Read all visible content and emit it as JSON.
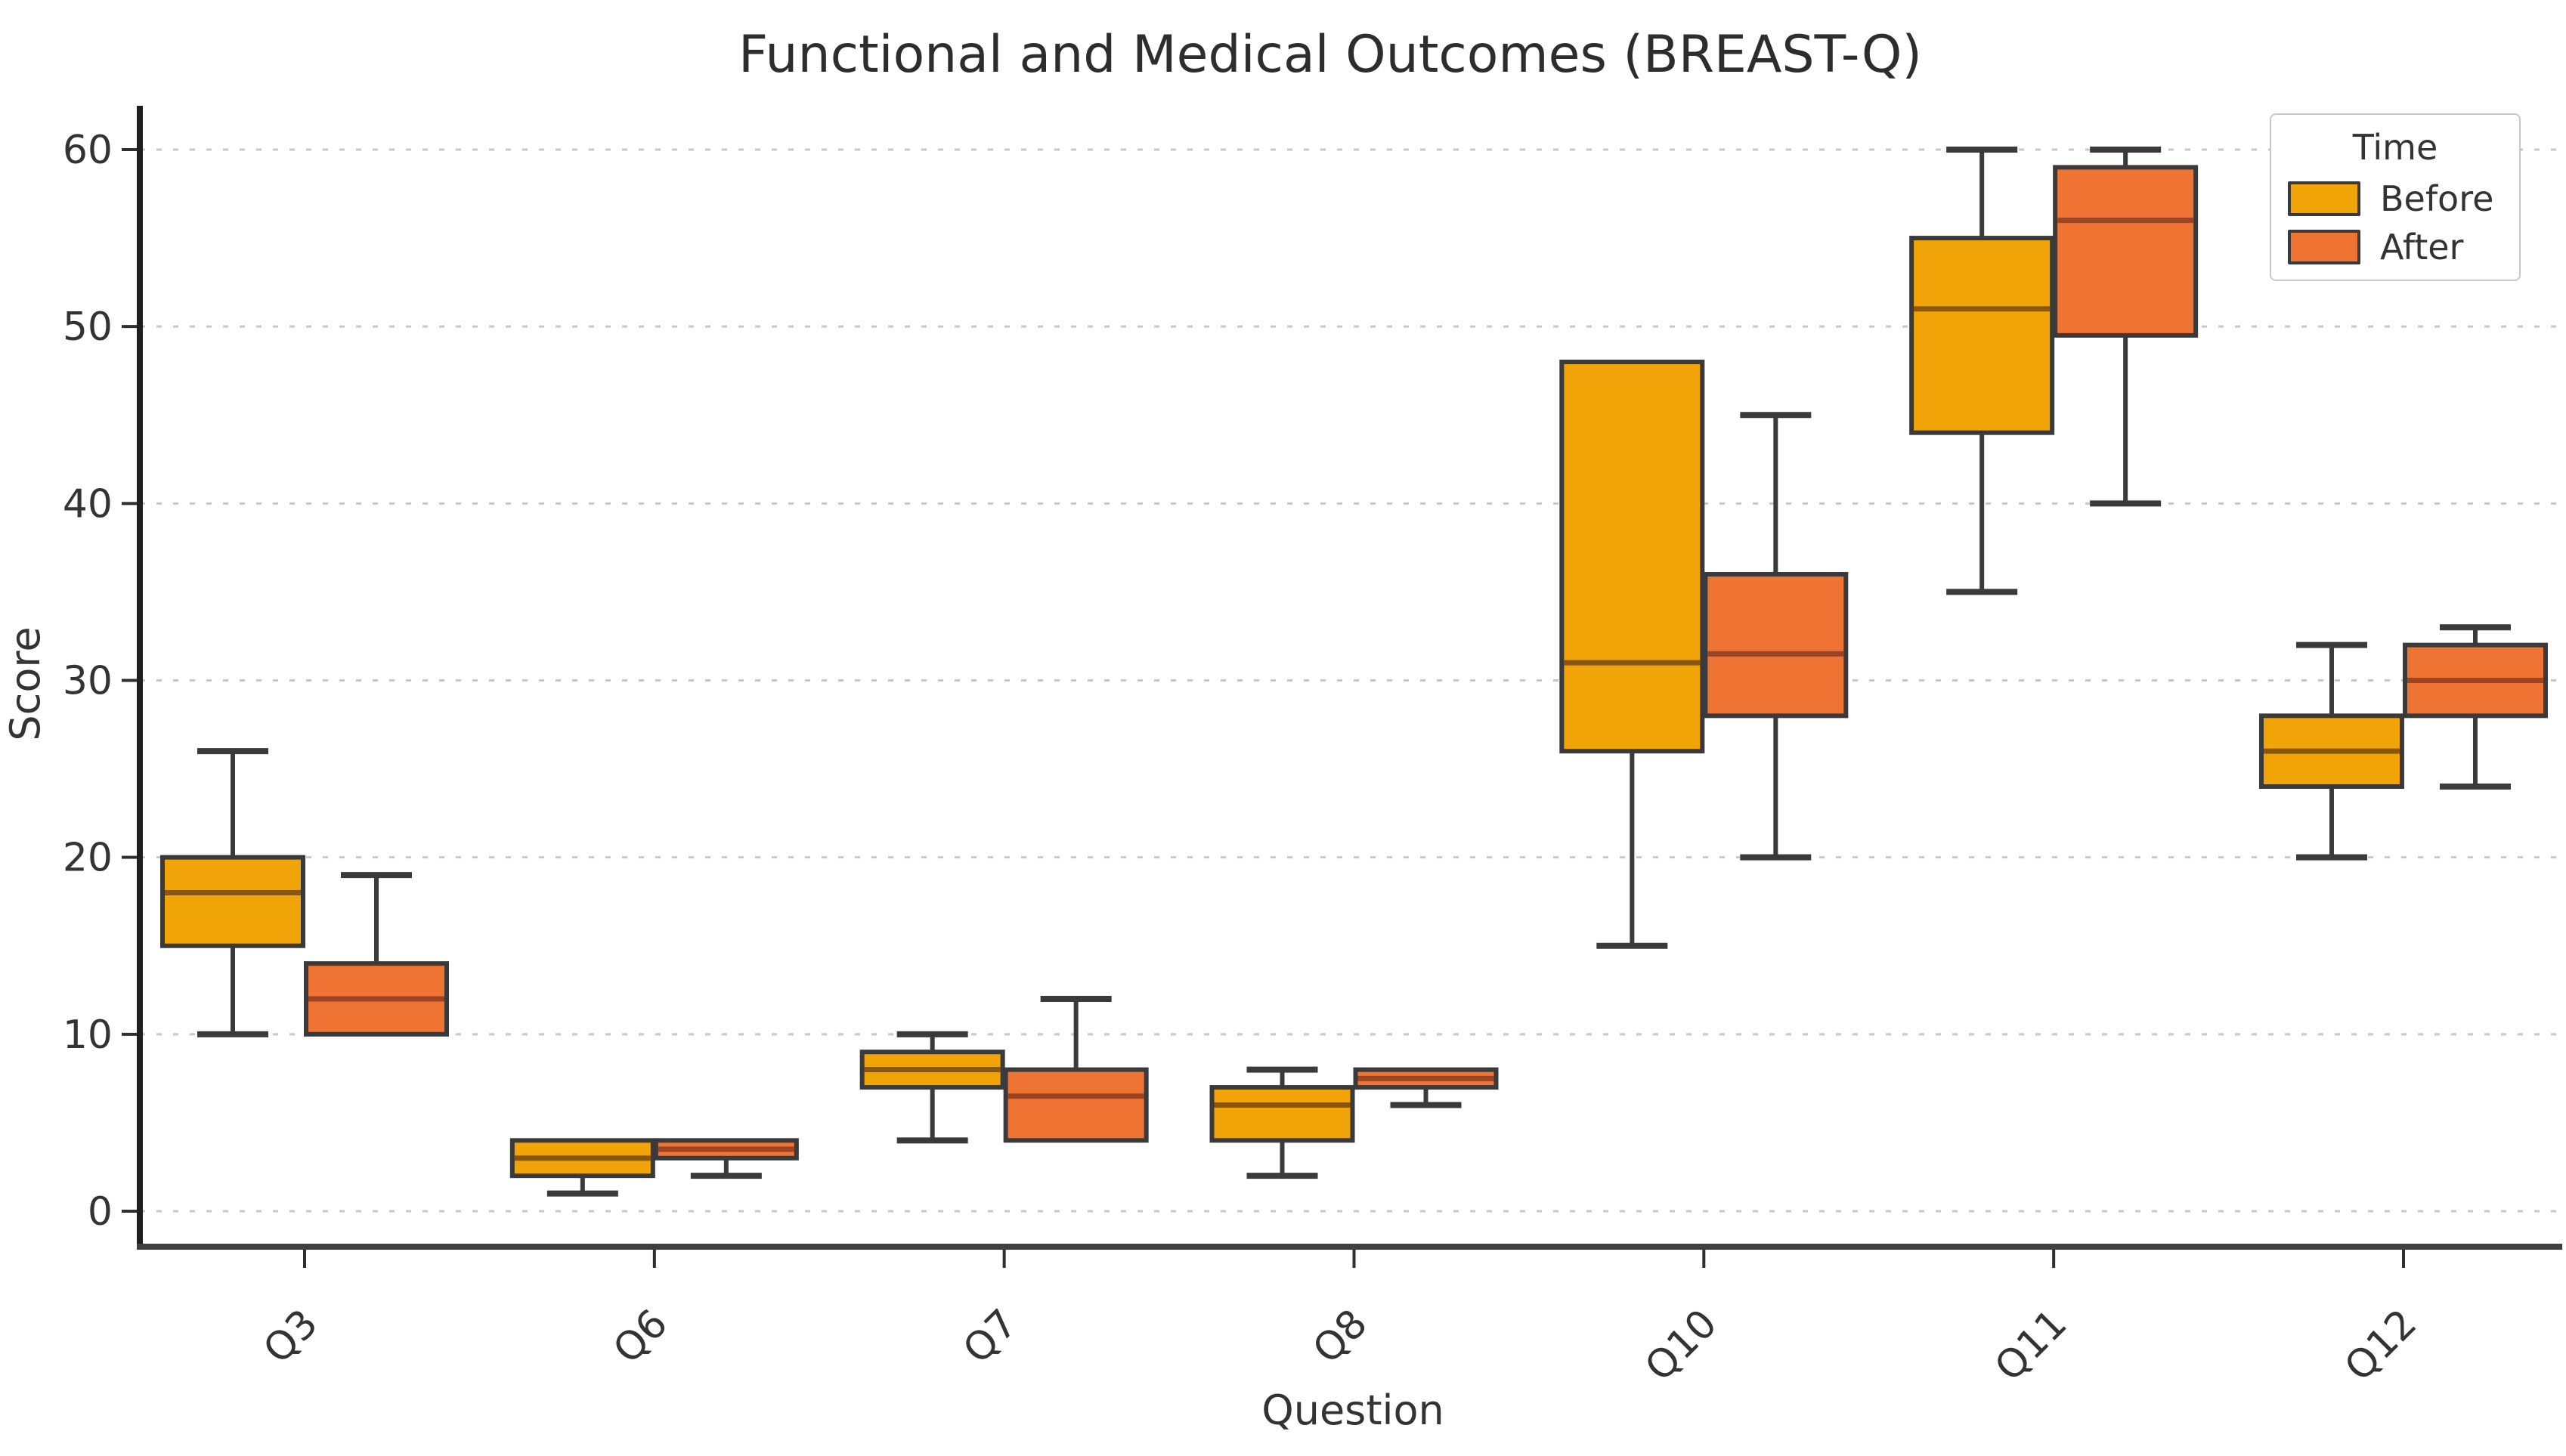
{
  "chart_data": {
    "type": "boxplot",
    "title": "Functional and Medical Outcomes (BREAST-Q)",
    "xlabel": "Question",
    "ylabel": "Score",
    "categories": [
      "Q3",
      "Q6",
      "Q7",
      "Q8",
      "Q10",
      "Q11",
      "Q12"
    ],
    "yticks": [
      0,
      10,
      20,
      30,
      40,
      50,
      60
    ],
    "ylim": [
      -2,
      62
    ],
    "grid": "horizontal-dashed",
    "legend": {
      "title": "Time",
      "position": "upper-right",
      "entries": [
        {
          "label": "Before",
          "color": "#F1A408"
        },
        {
          "label": "After",
          "color": "#EF7433"
        }
      ]
    },
    "style": {
      "box_edge": "#3a3a3a",
      "whisker": "#3a3a3a",
      "grid_color": "#c8c8c8",
      "spine_color": "#2f2f2f",
      "title_color": "#2d2d2d",
      "median_colors": {
        "Before": "#8a560e",
        "After": "#9c4524"
      }
    },
    "series": [
      {
        "name": "Before",
        "color": "#F1A408",
        "boxes": [
          {
            "category": "Q3",
            "min": 10,
            "q1": 15,
            "median": 18,
            "q3": 20,
            "max": 26
          },
          {
            "category": "Q6",
            "min": 1,
            "q1": 2,
            "median": 3,
            "q3": 4,
            "max": 4
          },
          {
            "category": "Q7",
            "min": 4,
            "q1": 7,
            "median": 8,
            "q3": 9,
            "max": 10
          },
          {
            "category": "Q8",
            "min": 2,
            "q1": 4,
            "median": 6,
            "q3": 7,
            "max": 8
          },
          {
            "category": "Q10",
            "min": 15,
            "q1": 26,
            "median": 31,
            "q3": 48,
            "max": 48
          },
          {
            "category": "Q11",
            "min": 35,
            "q1": 44,
            "median": 51,
            "q3": 55,
            "max": 60
          },
          {
            "category": "Q12",
            "min": 20,
            "q1": 24,
            "median": 26,
            "q3": 28,
            "max": 32
          }
        ]
      },
      {
        "name": "After",
        "color": "#EF7433",
        "boxes": [
          {
            "category": "Q3",
            "min": 10,
            "q1": 10,
            "median": 12,
            "q3": 14,
            "max": 19
          },
          {
            "category": "Q6",
            "min": 2,
            "q1": 3,
            "median": 3.5,
            "q3": 4,
            "max": 4
          },
          {
            "category": "Q7",
            "min": 4,
            "q1": 4,
            "median": 6.5,
            "q3": 8,
            "max": 12
          },
          {
            "category": "Q8",
            "min": 6,
            "q1": 7,
            "median": 7.5,
            "q3": 8,
            "max": 8
          },
          {
            "category": "Q10",
            "min": 20,
            "q1": 28,
            "median": 31.5,
            "q3": 36,
            "max": 45
          },
          {
            "category": "Q11",
            "min": 40,
            "q1": 49.5,
            "median": 56,
            "q3": 59,
            "max": 60
          },
          {
            "category": "Q12",
            "min": 24,
            "q1": 28,
            "median": 30,
            "q3": 32,
            "max": 33
          }
        ]
      }
    ]
  }
}
